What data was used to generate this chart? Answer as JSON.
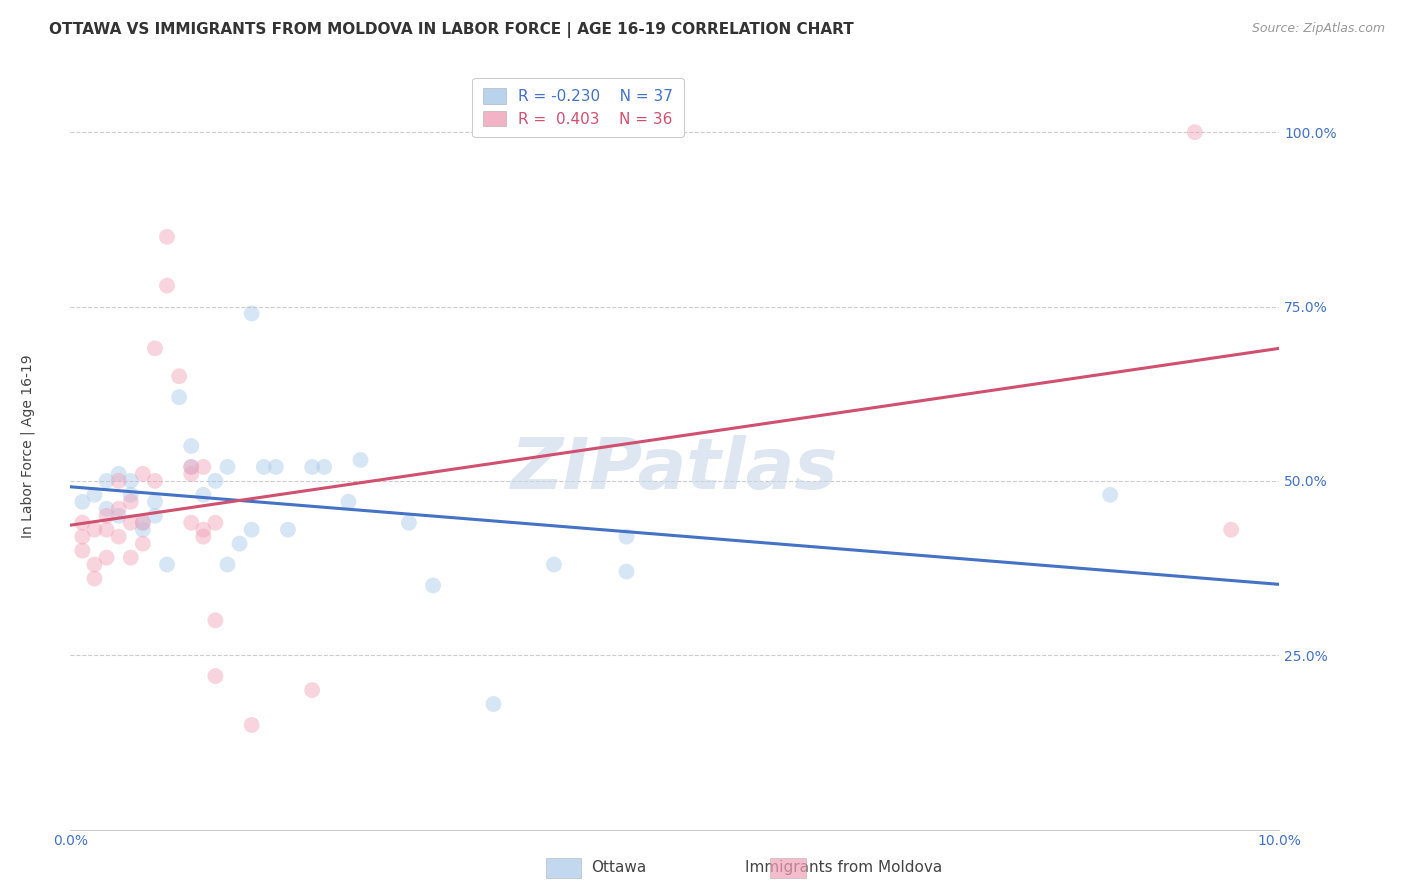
{
  "title": "OTTAWA VS IMMIGRANTS FROM MOLDOVA IN LABOR FORCE | AGE 16-19 CORRELATION CHART",
  "source": "Source: ZipAtlas.com",
  "ylabel": "In Labor Force | Age 16-19",
  "xlim": [
    0.0,
    0.1
  ],
  "ylim": [
    0.0,
    1.1
  ],
  "yticks": [
    0.0,
    0.25,
    0.5,
    0.75,
    1.0
  ],
  "ytick_labels": [
    "",
    "25.0%",
    "50.0%",
    "75.0%",
    "100.0%"
  ],
  "xticks": [
    0.0,
    0.02,
    0.04,
    0.06,
    0.08,
    0.1
  ],
  "xtick_labels": [
    "0.0%",
    "",
    "",
    "",
    "",
    "10.0%"
  ],
  "background_color": "#ffffff",
  "grid_color": "#cccccc",
  "watermark": "ZIPatlas",
  "ottawa_color": "#a8c8e8",
  "moldova_color": "#f0a0b8",
  "ottawa_R": -0.23,
  "ottawa_N": 37,
  "moldova_R": 0.403,
  "moldova_N": 36,
  "ottawa_line_color": "#4472c4",
  "moldova_line_color": "#d05070",
  "ottawa_scatter": [
    [
      0.001,
      0.47
    ],
    [
      0.002,
      0.48
    ],
    [
      0.003,
      0.5
    ],
    [
      0.003,
      0.46
    ],
    [
      0.004,
      0.45
    ],
    [
      0.004,
      0.51
    ],
    [
      0.005,
      0.48
    ],
    [
      0.005,
      0.5
    ],
    [
      0.006,
      0.44
    ],
    [
      0.006,
      0.43
    ],
    [
      0.007,
      0.47
    ],
    [
      0.007,
      0.45
    ],
    [
      0.008,
      0.38
    ],
    [
      0.009,
      0.62
    ],
    [
      0.01,
      0.55
    ],
    [
      0.01,
      0.52
    ],
    [
      0.011,
      0.48
    ],
    [
      0.012,
      0.5
    ],
    [
      0.013,
      0.52
    ],
    [
      0.013,
      0.38
    ],
    [
      0.014,
      0.41
    ],
    [
      0.015,
      0.74
    ],
    [
      0.015,
      0.43
    ],
    [
      0.016,
      0.52
    ],
    [
      0.017,
      0.52
    ],
    [
      0.018,
      0.43
    ],
    [
      0.02,
      0.52
    ],
    [
      0.021,
      0.52
    ],
    [
      0.023,
      0.47
    ],
    [
      0.024,
      0.53
    ],
    [
      0.028,
      0.44
    ],
    [
      0.03,
      0.35
    ],
    [
      0.035,
      0.18
    ],
    [
      0.04,
      0.38
    ],
    [
      0.046,
      0.37
    ],
    [
      0.046,
      0.42
    ],
    [
      0.086,
      0.48
    ]
  ],
  "moldova_scatter": [
    [
      0.001,
      0.44
    ],
    [
      0.001,
      0.42
    ],
    [
      0.001,
      0.4
    ],
    [
      0.002,
      0.43
    ],
    [
      0.002,
      0.38
    ],
    [
      0.002,
      0.36
    ],
    [
      0.003,
      0.45
    ],
    [
      0.003,
      0.43
    ],
    [
      0.003,
      0.39
    ],
    [
      0.004,
      0.5
    ],
    [
      0.004,
      0.46
    ],
    [
      0.004,
      0.42
    ],
    [
      0.005,
      0.47
    ],
    [
      0.005,
      0.44
    ],
    [
      0.005,
      0.39
    ],
    [
      0.006,
      0.51
    ],
    [
      0.006,
      0.44
    ],
    [
      0.006,
      0.41
    ],
    [
      0.007,
      0.69
    ],
    [
      0.007,
      0.5
    ],
    [
      0.008,
      0.85
    ],
    [
      0.008,
      0.78
    ],
    [
      0.009,
      0.65
    ],
    [
      0.01,
      0.52
    ],
    [
      0.01,
      0.51
    ],
    [
      0.01,
      0.44
    ],
    [
      0.011,
      0.52
    ],
    [
      0.011,
      0.43
    ],
    [
      0.011,
      0.42
    ],
    [
      0.012,
      0.44
    ],
    [
      0.012,
      0.3
    ],
    [
      0.012,
      0.22
    ],
    [
      0.015,
      0.15
    ],
    [
      0.02,
      0.2
    ],
    [
      0.093,
      1.0
    ],
    [
      0.096,
      0.43
    ]
  ],
  "title_fontsize": 11,
  "axis_label_fontsize": 10,
  "tick_fontsize": 10,
  "legend_fontsize": 11,
  "source_fontsize": 9,
  "tick_color": "#4472c4",
  "watermark_color": "#c8d8e8",
  "watermark_fontsize": 52,
  "scatter_size": 130,
  "scatter_alpha": 0.45,
  "line_width": 2.2
}
